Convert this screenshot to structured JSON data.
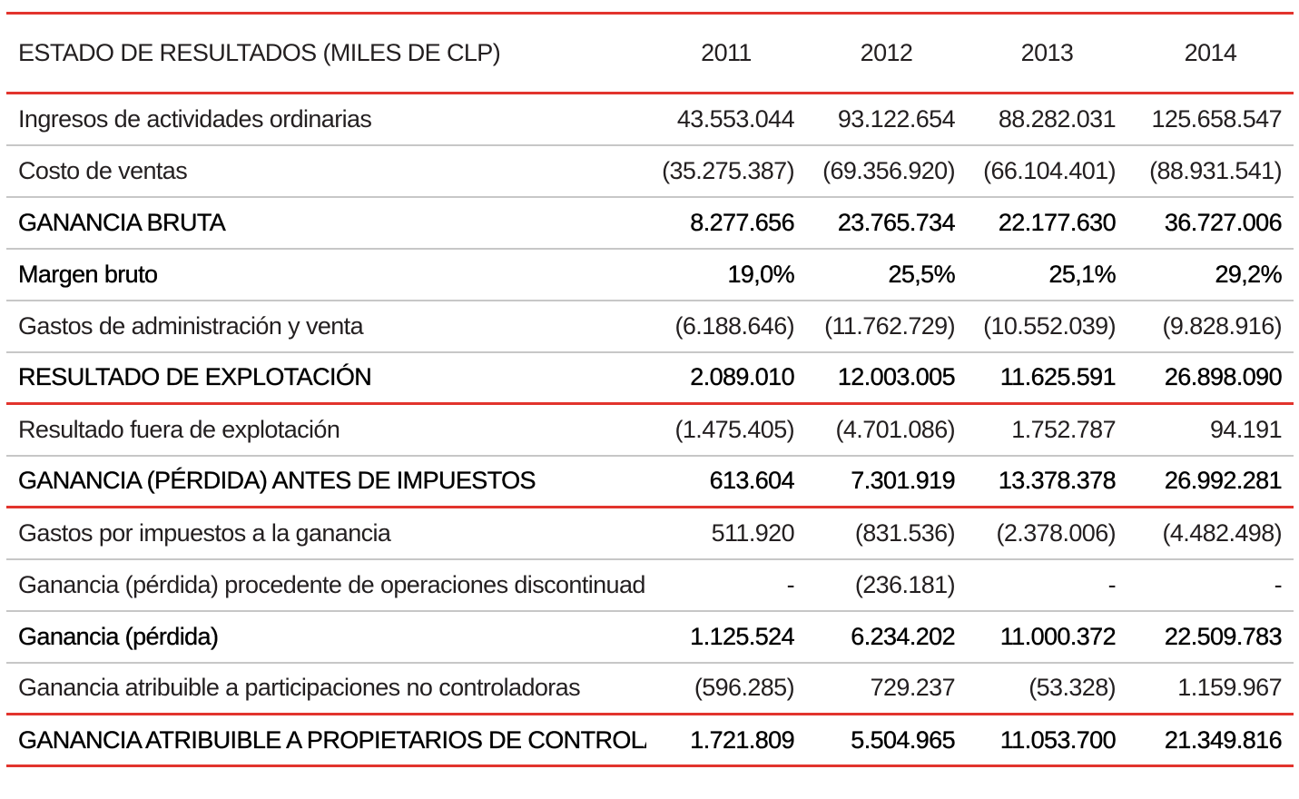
{
  "table": {
    "title": "ESTADO DE RESULTADOS (MILES DE CLP)",
    "years": [
      "2011",
      "2012",
      "2013",
      "2014"
    ],
    "rows": [
      {
        "label": "Ingresos de actividades ordinarias",
        "values": [
          "43.553.044",
          "93.122.654",
          "88.282.031",
          "125.658.547"
        ]
      },
      {
        "label": "Costo de ventas",
        "values": [
          "(35.275.387)",
          "(69.356.920)",
          "(66.104.401)",
          "(88.931.541)"
        ]
      },
      {
        "label": "GANANCIA BRUTA",
        "values": [
          "8.277.656",
          "23.765.734",
          "22.177.630",
          "36.727.006"
        ]
      },
      {
        "label": "Margen bruto",
        "values": [
          "19,0%",
          "25,5%",
          "25,1%",
          "29,2%"
        ]
      },
      {
        "label": "Gastos de administración y venta",
        "values": [
          "(6.188.646)",
          "(11.762.729)",
          "(10.552.039)",
          "(9.828.916)"
        ]
      },
      {
        "label": "RESULTADO DE EXPLOTACIÓN",
        "values": [
          "2.089.010",
          "12.003.005",
          "11.625.591",
          "26.898.090"
        ]
      },
      {
        "label": "Resultado fuera de explotación",
        "values": [
          "(1.475.405)",
          "(4.701.086)",
          "1.752.787",
          "94.191"
        ]
      },
      {
        "label": "GANANCIA (PÉRDIDA) ANTES DE IMPUESTOS",
        "values": [
          "613.604",
          "7.301.919",
          "13.378.378",
          "26.992.281"
        ]
      },
      {
        "label": "Gastos por impuestos a la ganancia",
        "values": [
          "511.920",
          "(831.536)",
          "(2.378.006)",
          "(4.482.498)"
        ]
      },
      {
        "label": "Ganancia (pérdida) procedente de operaciones discontinuadas",
        "values": [
          "-",
          "(236.181)",
          "-",
          "-"
        ]
      },
      {
        "label": "Ganancia (pérdida)",
        "values": [
          "1.125.524",
          "6.234.202",
          "11.000.372",
          "22.509.783"
        ]
      },
      {
        "label": "Ganancia atribuible a participaciones no controladoras",
        "values": [
          "(596.285)",
          "729.237",
          "(53.328)",
          "1.159.967"
        ]
      },
      {
        "label": "GANANCIA ATRIBUIBLE A PROPIETARIOS DE CONTROLADOR",
        "values": [
          "1.721.809",
          "5.504.965",
          "11.053.700",
          "21.349.816"
        ]
      }
    ]
  },
  "colors": {
    "rule_red": "#e2342d",
    "rule_gray": "#c7c7c7",
    "text": "#231f20"
  }
}
